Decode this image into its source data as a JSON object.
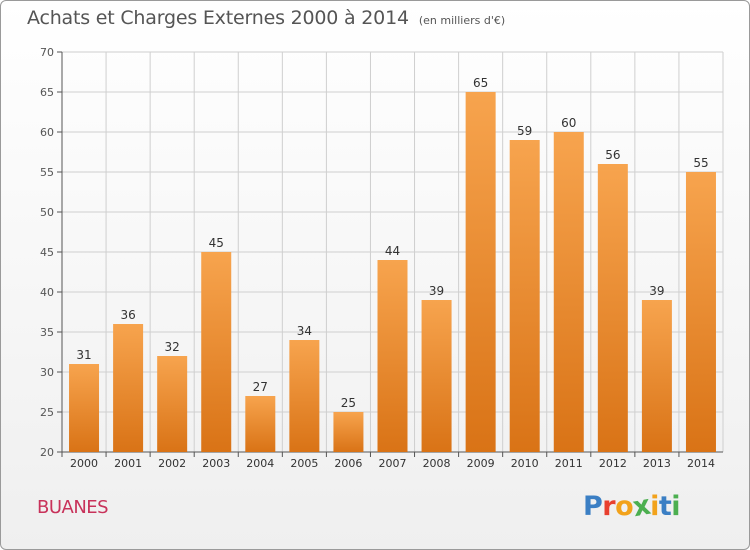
{
  "title": "Achats et Charges Externes 2000 à 2014",
  "subtitle": "(en milliers d'€)",
  "commune": "BUANES",
  "brand": "Proxiti",
  "colors": {
    "bar_light": "#f7a44e",
    "bar_dark": "#d97316",
    "commune_text": "#c8325a",
    "axis": "#555555",
    "grid": "#cfcfcf"
  },
  "chart_data": {
    "type": "bar",
    "title": "Achats et Charges Externes 2000 à 2014",
    "subtitle": "(en milliers d'€)",
    "categories": [
      "2000",
      "2001",
      "2002",
      "2003",
      "2004",
      "2005",
      "2006",
      "2007",
      "2008",
      "2009",
      "2010",
      "2011",
      "2012",
      "2013",
      "2014"
    ],
    "values": [
      31,
      36,
      32,
      45,
      27,
      34,
      25,
      44,
      39,
      65,
      59,
      60,
      56,
      39,
      55
    ],
    "ylim": [
      20,
      70
    ],
    "yticks": [
      20,
      25,
      30,
      35,
      40,
      45,
      50,
      55,
      60,
      65,
      70
    ],
    "grid": true,
    "data_labels": true
  }
}
